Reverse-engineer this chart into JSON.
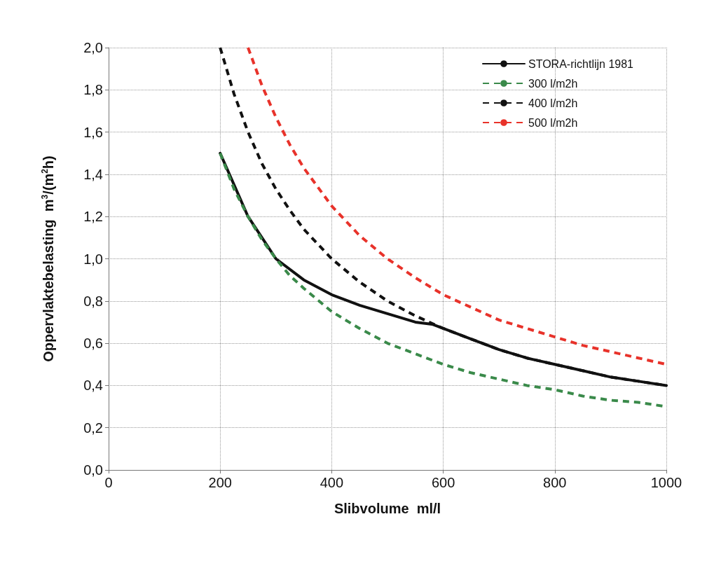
{
  "chart_data": {
    "type": "line",
    "xlabel": "Slibvolume  ml/l",
    "ylabel": "Oppervlaktebelasting  m$^{3}$/(m$^{2}$h)",
    "xlim": [
      0,
      1000
    ],
    "xticks": [
      0,
      200,
      400,
      600,
      800,
      1000
    ],
    "ylim": [
      0,
      2
    ],
    "yticks": [
      {
        "value": 0,
        "label": "0,0"
      },
      {
        "value": 0.2,
        "label": "0,2"
      },
      {
        "value": 0.4,
        "label": "0,4"
      },
      {
        "value": 0.6,
        "label": "0,6"
      },
      {
        "value": 0.8,
        "label": "0,8"
      },
      {
        "value": 1,
        "label": "1,0"
      },
      {
        "value": 1.2,
        "label": "1,2"
      },
      {
        "value": 1.4,
        "label": "1,4"
      },
      {
        "value": 1.6,
        "label": "1,6"
      },
      {
        "value": 1.8,
        "label": "1,8"
      },
      {
        "value": 2,
        "label": "2,0"
      }
    ],
    "grid": true,
    "legend": "top right",
    "marker": "none",
    "series": [
      {
        "name": "STORA-richtlijn 1981",
        "color": "#111111",
        "line_style": "solid",
        "x": [
          200,
          250,
          300,
          350,
          400,
          450,
          500,
          550,
          580,
          600,
          650,
          700,
          750,
          800,
          850,
          900,
          950,
          1000
        ],
        "values": [
          1.5,
          1.2,
          1.0,
          0.9,
          0.83,
          0.78,
          0.74,
          0.7,
          0.69,
          0.67,
          0.62,
          0.57,
          0.53,
          0.5,
          0.47,
          0.44,
          0.42,
          0.4
        ]
      },
      {
        "name": "300 l/m2h",
        "color": "#3a8a4a",
        "line_style": "dashed",
        "x": [
          200,
          225,
          250,
          275,
          300,
          325,
          350,
          400,
          450,
          500,
          550,
          600,
          650,
          700,
          750,
          800,
          850,
          900,
          950,
          1000
        ],
        "values": [
          1.5,
          1.33,
          1.2,
          1.09,
          1.0,
          0.92,
          0.86,
          0.75,
          0.67,
          0.6,
          0.55,
          0.5,
          0.46,
          0.43,
          0.4,
          0.38,
          0.35,
          0.33,
          0.32,
          0.3
        ]
      },
      {
        "name": "400 l/m2h",
        "color": "#111111",
        "line_style": "dashed",
        "x": [
          200,
          225,
          250,
          275,
          300,
          325,
          350,
          400,
          450,
          500,
          550,
          600,
          650,
          700,
          750,
          800,
          850,
          900,
          950,
          1000
        ],
        "values": [
          2.0,
          1.78,
          1.6,
          1.45,
          1.33,
          1.23,
          1.14,
          1.0,
          0.89,
          0.8,
          0.73,
          0.67,
          0.62,
          0.57,
          0.53,
          0.5,
          0.47,
          0.44,
          0.42,
          0.4
        ]
      },
      {
        "name": "500 l/m2h",
        "color": "#e8322a",
        "line_style": "dashed",
        "x": [
          250,
          275,
          300,
          325,
          350,
          400,
          450,
          500,
          550,
          600,
          650,
          700,
          750,
          800,
          850,
          900,
          950,
          1000
        ],
        "values": [
          2.0,
          1.82,
          1.67,
          1.54,
          1.43,
          1.25,
          1.11,
          1.0,
          0.91,
          0.83,
          0.77,
          0.71,
          0.67,
          0.63,
          0.59,
          0.56,
          0.53,
          0.5
        ]
      }
    ]
  }
}
